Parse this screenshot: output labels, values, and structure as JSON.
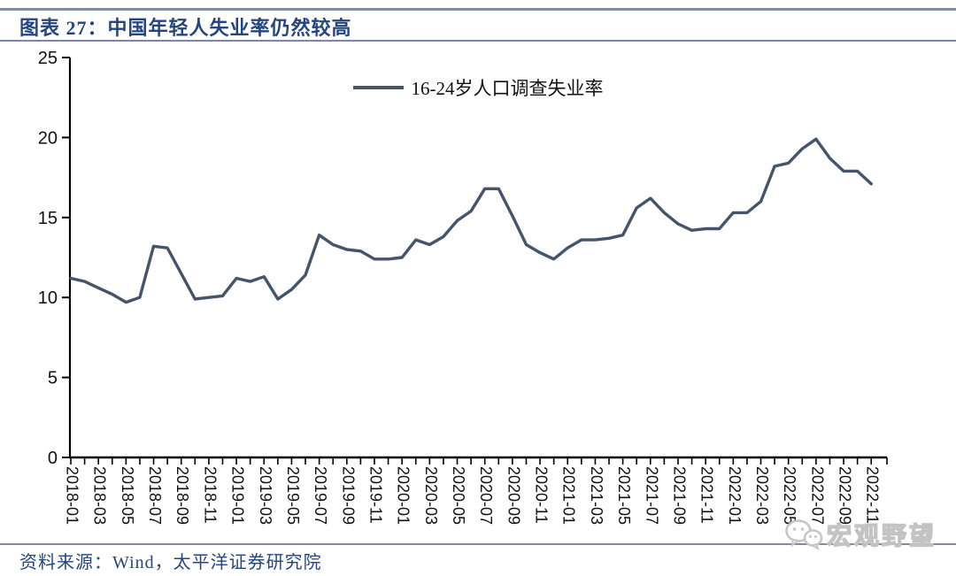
{
  "header": {
    "title": "图表 27：中国年轻人失业率仍然较高"
  },
  "footer": {
    "source": "资料来源：Wind，太平洋证券研究院"
  },
  "watermark": {
    "icon": "wechat-icon",
    "text": "宏观野望"
  },
  "chart_data": {
    "type": "line",
    "title": "图表 27：中国年轻人失业率仍然较高",
    "legend": [
      "16-24岁人口调查失业率"
    ],
    "legend_position": "top-center",
    "line_color": "#44546A",
    "grid": false,
    "ylim": [
      0,
      25
    ],
    "yticks": [
      0,
      5,
      10,
      15,
      20,
      25
    ],
    "x_label_every": 2,
    "x": [
      "2018-01",
      "2018-02",
      "2018-03",
      "2018-04",
      "2018-05",
      "2018-06",
      "2018-07",
      "2018-08",
      "2018-09",
      "2018-10",
      "2018-11",
      "2018-12",
      "2019-01",
      "2019-02",
      "2019-03",
      "2019-04",
      "2019-05",
      "2019-06",
      "2019-07",
      "2019-08",
      "2019-09",
      "2019-10",
      "2019-11",
      "2019-12",
      "2020-01",
      "2020-02",
      "2020-03",
      "2020-04",
      "2020-05",
      "2020-06",
      "2020-07",
      "2020-08",
      "2020-09",
      "2020-10",
      "2020-11",
      "2020-12",
      "2021-01",
      "2021-02",
      "2021-03",
      "2021-04",
      "2021-05",
      "2021-06",
      "2021-07",
      "2021-08",
      "2021-09",
      "2021-10",
      "2021-11",
      "2021-12",
      "2022-01",
      "2022-02",
      "2022-03",
      "2022-04",
      "2022-05",
      "2022-06",
      "2022-07",
      "2022-08",
      "2022-09",
      "2022-10",
      "2022-11"
    ],
    "series": [
      {
        "name": "16-24岁人口调查失业率",
        "values": [
          11.2,
          11.0,
          10.6,
          10.2,
          9.7,
          10.0,
          13.2,
          13.1,
          11.5,
          9.9,
          10.0,
          10.1,
          11.2,
          11.0,
          11.3,
          9.9,
          10.5,
          11.4,
          13.9,
          13.3,
          13.0,
          12.9,
          12.4,
          12.4,
          12.5,
          13.6,
          13.3,
          13.8,
          14.8,
          15.4,
          16.8,
          16.8,
          15.1,
          13.3,
          12.8,
          12.4,
          13.1,
          13.6,
          13.6,
          13.7,
          13.9,
          15.6,
          16.2,
          15.3,
          14.6,
          14.2,
          14.3,
          14.3,
          15.3,
          15.3,
          16.0,
          18.2,
          18.4,
          19.3,
          19.9,
          18.7,
          17.9,
          17.9,
          17.1
        ]
      }
    ]
  }
}
